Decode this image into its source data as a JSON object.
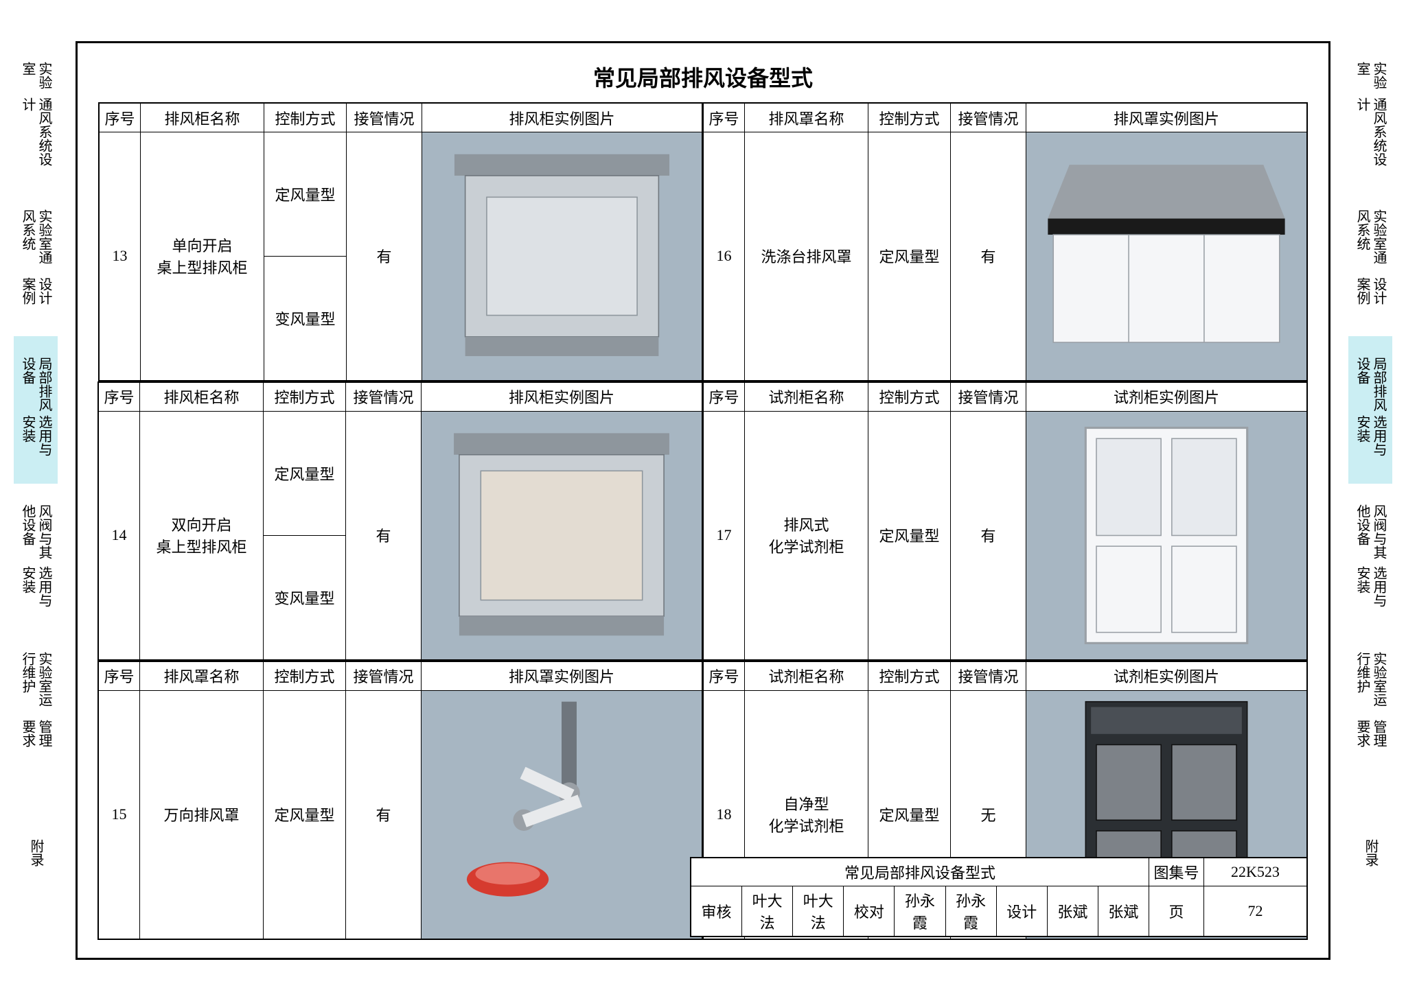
{
  "doc": {
    "title": "常见局部排风设备型式",
    "atlas_label": "图集号",
    "atlas_no": "22K523",
    "page_label": "页",
    "page_no": "72",
    "review_label": "审核",
    "review_name": "叶大法",
    "check_label": "校对",
    "check_name": "孙永霞",
    "design_label": "设计",
    "design_name": "张斌"
  },
  "tabs": [
    {
      "l1": "实验室",
      "l2": "通风系统设计",
      "active": false
    },
    {
      "l1": "实验室通风系统",
      "l2": "设计案例",
      "active": false
    },
    {
      "l1": "局部排风设备",
      "l2": "选用与安装",
      "active": true
    },
    {
      "l1": "风阀与其他设备",
      "l2": "选用与安装",
      "active": false
    },
    {
      "l1": "实验室运行维护",
      "l2": "管理要求",
      "active": false
    },
    {
      "l1": "附录",
      "l2": "",
      "active": false
    }
  ],
  "headers": {
    "seq": "序号",
    "cab_name": "排风柜名称",
    "hood_name": "排风罩名称",
    "reagent_name": "试剂柜名称",
    "ctrl": "控制方式",
    "pipe": "接管情况",
    "cab_img": "排风柜实例图片",
    "hood_img": "排风罩实例图片",
    "reagent_img": "试剂柜实例图片"
  },
  "blocks": [
    {
      "header_name_key": "cab_name",
      "header_img_key": "cab_img",
      "seq": "13",
      "name": "单向开启\n桌上型排风柜",
      "ctrl": [
        "定风量型",
        "变风量型"
      ],
      "pipe": "有",
      "svg": "fumehood"
    },
    {
      "header_name_key": "hood_name",
      "header_img_key": "hood_img",
      "seq": "16",
      "name": "洗涤台排风罩",
      "ctrl": [
        "定风量型"
      ],
      "pipe": "有",
      "svg": "washstation"
    },
    {
      "header_name_key": "cab_name",
      "header_img_key": "cab_img",
      "seq": "14",
      "name": "双向开启\n桌上型排风柜",
      "ctrl": [
        "定风量型",
        "变风量型"
      ],
      "pipe": "有",
      "svg": "fumehood2"
    },
    {
      "header_name_key": "reagent_name",
      "header_img_key": "reagent_img",
      "seq": "17",
      "name": "排风式\n化学试剂柜",
      "ctrl": [
        "定风量型"
      ],
      "pipe": "有",
      "svg": "cabinet"
    },
    {
      "header_name_key": "hood_name",
      "header_img_key": "hood_img",
      "seq": "15",
      "name": "万向排风罩",
      "ctrl": [
        "定风量型"
      ],
      "pipe": "有",
      "svg": "arm"
    },
    {
      "header_name_key": "reagent_name",
      "header_img_key": "reagent_img",
      "seq": "18",
      "name": "自净型\n化学试剂柜",
      "ctrl": [
        "定风量型"
      ],
      "pipe": "无",
      "svg": "darkcabinet"
    }
  ],
  "colors": {
    "img_bg": "#a7b6c2",
    "tab_active": "#cbeef3",
    "border": "#000000",
    "equipment_gray": "#b8bec4",
    "equipment_dark": "#6f767d",
    "arm_red": "#d63b2f",
    "cabinet_white": "#f5f6f8",
    "darkcab": "#2b2f33"
  }
}
